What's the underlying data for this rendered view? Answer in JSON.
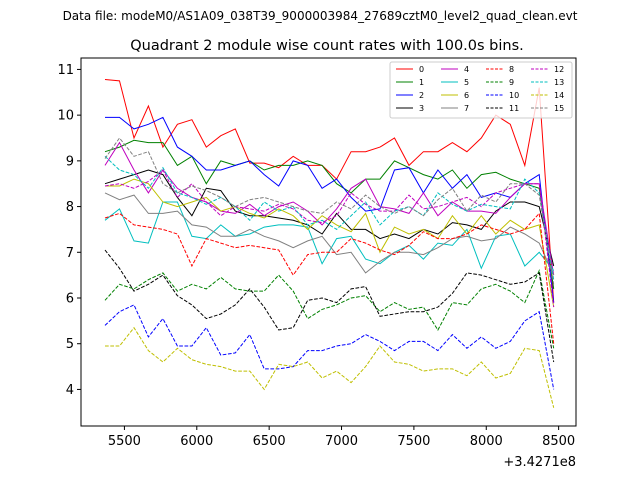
{
  "header": {
    "data_file": "Data file: modeM0/AS1A09_038T39_9000003984_27689cztM0_level2_quad_clean.evt"
  },
  "chart_data": {
    "type": "line",
    "title": "Quadrant 2 module wise count rates with 100.0s bins.",
    "xlabel": "",
    "ylabel": "",
    "offset_text": "+3.4271e8",
    "xlim": [
      5200,
      8620
    ],
    "ylim": [
      3.2,
      11.25
    ],
    "x_ticks": [
      5500,
      6000,
      6500,
      7000,
      7500,
      8000,
      8500
    ],
    "x_tick_labels": [
      "5500",
      "6000",
      "6500",
      "7000",
      "7500",
      "8000",
      "8500"
    ],
    "y_ticks": [
      4,
      5,
      6,
      7,
      8,
      9,
      10,
      11
    ],
    "y_tick_labels": [
      "4",
      "5",
      "6",
      "7",
      "8",
      "9",
      "10",
      "11"
    ],
    "grid": false,
    "legend_position": "top-right",
    "x": [
      5366,
      5466,
      5566,
      5666,
      5766,
      5866,
      5966,
      6066,
      6166,
      6266,
      6366,
      6466,
      6566,
      6666,
      6766,
      6866,
      6966,
      7066,
      7166,
      7266,
      7366,
      7466,
      7566,
      7666,
      7766,
      7866,
      7966,
      8066,
      8166,
      8266,
      8366,
      8466
    ],
    "series": [
      {
        "name": "0",
        "color": "#ff0000",
        "dash": "solid",
        "values": [
          10.78,
          10.75,
          9.5,
          10.2,
          9.3,
          9.8,
          9.9,
          9.3,
          9.55,
          9.7,
          8.95,
          8.95,
          8.85,
          9.1,
          8.9,
          8.9,
          8.6,
          9.2,
          9.2,
          9.3,
          9.5,
          8.9,
          9.2,
          9.2,
          9.4,
          9.2,
          9.5,
          10.0,
          9.8,
          8.9,
          10.6,
          5.9
        ]
      },
      {
        "name": "1",
        "color": "#008000",
        "dash": "solid",
        "values": [
          9.2,
          9.3,
          9.45,
          9.4,
          9.4,
          8.9,
          9.1,
          8.5,
          9.0,
          8.9,
          9.0,
          8.8,
          8.9,
          8.9,
          9.0,
          8.9,
          8.5,
          8.3,
          8.6,
          8.6,
          9.0,
          8.85,
          8.7,
          8.6,
          8.8,
          8.4,
          8.7,
          8.75,
          8.6,
          8.5,
          8.4,
          6.2
        ]
      },
      {
        "name": "2",
        "color": "#0000ff",
        "dash": "solid",
        "values": [
          9.95,
          9.95,
          9.7,
          9.8,
          9.95,
          9.3,
          9.1,
          8.8,
          8.8,
          8.9,
          9.0,
          8.7,
          8.45,
          9.0,
          8.9,
          8.4,
          8.6,
          8.2,
          7.9,
          7.95,
          8.8,
          8.85,
          8.3,
          8.8,
          8.4,
          8.7,
          8.2,
          8.3,
          8.2,
          8.5,
          8.7,
          5.9
        ]
      },
      {
        "name": "3",
        "color": "#000000",
        "dash": "solid",
        "values": [
          8.5,
          8.6,
          8.7,
          8.8,
          8.7,
          8.2,
          7.8,
          8.4,
          8.35,
          7.9,
          7.8,
          7.8,
          7.75,
          7.7,
          7.6,
          7.4,
          7.85,
          7.5,
          7.5,
          7.3,
          7.4,
          7.3,
          7.5,
          7.4,
          7.65,
          7.6,
          7.5,
          7.9,
          8.1,
          8.1,
          8.0,
          6.7
        ]
      },
      {
        "name": "4",
        "color": "#bf00bf",
        "dash": "solid",
        "values": [
          8.9,
          9.4,
          8.8,
          8.3,
          8.8,
          8.4,
          8.2,
          8.1,
          7.9,
          7.85,
          8.05,
          7.8,
          8.0,
          8.1,
          7.9,
          7.6,
          7.95,
          8.4,
          8.6,
          8.0,
          7.95,
          7.85,
          8.3,
          7.8,
          8.1,
          7.9,
          7.9,
          7.85,
          8.2,
          8.5,
          8.5,
          6.5
        ]
      },
      {
        "name": "5",
        "color": "#00bfbf",
        "dash": "solid",
        "values": [
          7.7,
          7.95,
          7.25,
          7.2,
          8.1,
          8.1,
          7.35,
          7.3,
          7.6,
          7.35,
          7.4,
          7.55,
          7.6,
          7.6,
          7.55,
          6.75,
          7.3,
          7.35,
          6.85,
          6.75,
          7.0,
          7.15,
          6.85,
          7.2,
          7.15,
          7.5,
          6.65,
          7.35,
          7.4,
          6.7,
          7.0,
          6.6
        ]
      },
      {
        "name": "6",
        "color": "#bfbf00",
        "dash": "solid",
        "values": [
          8.45,
          8.45,
          8.6,
          8.5,
          8.1,
          8.0,
          8.1,
          8.2,
          7.9,
          8.0,
          7.85,
          7.75,
          7.95,
          7.8,
          7.5,
          7.8,
          7.6,
          7.45,
          7.85,
          7.0,
          7.55,
          7.4,
          7.5,
          7.3,
          7.8,
          7.4,
          7.8,
          7.4,
          7.7,
          7.5,
          7.6,
          5.8
        ]
      },
      {
        "name": "7",
        "color": "#808080",
        "dash": "solid",
        "values": [
          8.3,
          8.15,
          8.25,
          7.85,
          7.85,
          7.9,
          7.6,
          7.55,
          7.35,
          7.35,
          7.5,
          7.35,
          7.25,
          7.1,
          7.25,
          7.35,
          6.95,
          7.0,
          6.55,
          6.8,
          7.0,
          7.0,
          6.95,
          7.1,
          7.3,
          7.35,
          7.25,
          7.3,
          7.55,
          7.4,
          7.2,
          6.5
        ]
      },
      {
        "name": "8",
        "color": "#ff0000",
        "dash": "dashed",
        "values": [
          7.75,
          7.85,
          7.6,
          7.55,
          7.5,
          7.4,
          6.7,
          7.3,
          7.2,
          7.1,
          7.15,
          7.1,
          7.05,
          6.5,
          6.95,
          7.0,
          7.0,
          7.3,
          7.2,
          7.05,
          6.95,
          7.15,
          7.45,
          7.3,
          7.3,
          7.4,
          7.6,
          7.5,
          7.4,
          7.5,
          7.85,
          5.0
        ]
      },
      {
        "name": "9",
        "color": "#008000",
        "dash": "dashed",
        "values": [
          5.95,
          6.3,
          6.2,
          6.4,
          6.55,
          6.15,
          6.3,
          6.2,
          6.45,
          6.2,
          6.15,
          6.15,
          6.5,
          6.15,
          5.55,
          5.75,
          5.85,
          6.0,
          6.05,
          5.7,
          5.9,
          5.75,
          5.8,
          5.3,
          5.9,
          5.85,
          6.2,
          6.3,
          6.15,
          5.9,
          6.6,
          4.9
        ]
      },
      {
        "name": "10",
        "color": "#0000ff",
        "dash": "dashed",
        "values": [
          5.4,
          5.7,
          5.85,
          5.15,
          5.55,
          4.95,
          4.95,
          5.35,
          4.75,
          4.8,
          5.2,
          4.45,
          4.45,
          4.5,
          4.85,
          4.85,
          4.95,
          5.0,
          5.2,
          5.05,
          4.85,
          5.05,
          5.05,
          4.85,
          5.2,
          4.9,
          5.15,
          4.9,
          5.05,
          5.5,
          5.7,
          4.0
        ]
      },
      {
        "name": "11",
        "color": "#000000",
        "dash": "dashed",
        "values": [
          7.05,
          6.65,
          6.15,
          6.3,
          6.5,
          6.05,
          5.85,
          5.55,
          5.65,
          5.85,
          6.2,
          5.8,
          5.3,
          5.35,
          5.95,
          6.0,
          5.9,
          6.2,
          6.25,
          5.6,
          5.65,
          5.7,
          5.7,
          5.8,
          6.1,
          6.55,
          6.5,
          6.4,
          6.3,
          6.35,
          6.55,
          4.6
        ]
      },
      {
        "name": "12",
        "color": "#bf00bf",
        "dash": "dashed",
        "values": [
          8.45,
          8.5,
          8.4,
          8.55,
          8.8,
          8.2,
          8.5,
          8.1,
          7.8,
          8.0,
          7.95,
          7.9,
          8.05,
          7.95,
          7.7,
          7.65,
          7.8,
          8.3,
          8.05,
          7.9,
          7.9,
          8.25,
          7.95,
          8.0,
          8.1,
          8.2,
          8.0,
          8.3,
          8.4,
          8.5,
          8.5,
          5.8
        ]
      },
      {
        "name": "13",
        "color": "#00bfbf",
        "dash": "dashed",
        "values": [
          9.1,
          8.8,
          8.7,
          8.4,
          8.85,
          8.3,
          8.2,
          8.05,
          8.2,
          8.0,
          7.7,
          8.1,
          7.9,
          8.0,
          7.6,
          7.7,
          7.5,
          7.8,
          8.1,
          7.6,
          7.9,
          8.0,
          7.8,
          8.3,
          8.05,
          7.9,
          8.05,
          8.0,
          7.95,
          8.6,
          8.3,
          6.4
        ]
      },
      {
        "name": "14",
        "color": "#bfbf00",
        "dash": "dashed",
        "values": [
          4.95,
          4.95,
          5.35,
          4.85,
          4.6,
          4.9,
          4.65,
          4.55,
          4.5,
          4.4,
          4.4,
          4.0,
          4.55,
          4.5,
          4.6,
          4.25,
          4.4,
          4.15,
          4.5,
          4.95,
          4.6,
          4.55,
          4.4,
          4.45,
          4.45,
          4.3,
          4.6,
          4.25,
          4.35,
          4.9,
          4.85,
          3.6
        ]
      },
      {
        "name": "15",
        "color": "#808080",
        "dash": "dashed",
        "values": [
          9.05,
          9.5,
          9.1,
          9.2,
          8.5,
          8.3,
          8.45,
          8.35,
          8.2,
          8.0,
          8.15,
          8.2,
          8.1,
          8.0,
          7.9,
          7.85,
          8.1,
          7.95,
          8.25,
          8.0,
          7.85,
          8.0,
          7.8,
          8.15,
          8.4,
          7.9,
          8.25,
          8.1,
          8.5,
          8.5,
          8.25,
          6.3
        ]
      }
    ]
  }
}
